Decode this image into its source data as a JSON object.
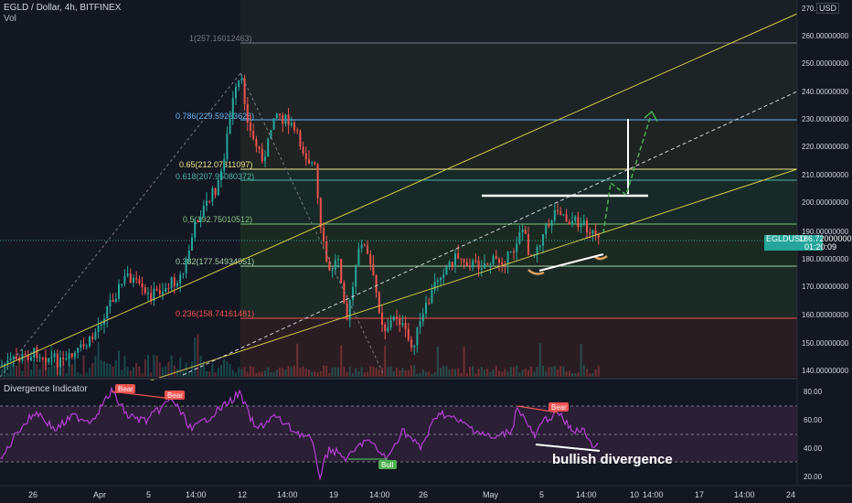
{
  "header": {
    "symbol_title": "EGLD / Dollar, 4h, BITFINEX",
    "volume_label": "Vol"
  },
  "currency_button": "USD",
  "price_axis": {
    "labels": [
      "270.00000000",
      "260.00000000",
      "250.00000000",
      "240.00000000",
      "230.00000000",
      "220.00000000",
      "210.00000000",
      "200.00000000",
      "190.00000000",
      "180.00000000",
      "170.00000000",
      "160.00000000",
      "150.00000000",
      "140.00000000"
    ],
    "top_clipped": "270.0"
  },
  "current_price": {
    "symbol": "EGLDUSD",
    "price": "186.72000000",
    "countdown": "01:20:09",
    "color": "#26a69a"
  },
  "fib_levels": [
    {
      "label": "1(257.16012463)",
      "color": "#787b86"
    },
    {
      "label": "0.786(229.59263628)",
      "color": "#64b5f6"
    },
    {
      "label": "0.65(212.07311097)",
      "color": "#f0e68c"
    },
    {
      "label": "0.618(207.95080372)",
      "color": "#4db6ac"
    },
    {
      "label": "0.5(192.75010512)",
      "color": "#81c784"
    },
    {
      "label": "0.382(177.54934051)",
      "color": "#a5d6a7"
    },
    {
      "label": "0.236(158.74161481)",
      "color": "#ef5350"
    }
  ],
  "indicator": {
    "title": "Divergence Indicator",
    "axis_labels": [
      "80.00",
      "60.00",
      "40.00",
      "20.00"
    ],
    "bear_label": "Bear",
    "bull_label": "Bull",
    "annotation": "bullish divergence"
  },
  "time_axis": {
    "labels": [
      "26",
      "Apr",
      "5",
      "14:00",
      "12",
      "14:00",
      "19",
      "14:00",
      "26",
      "May",
      "5",
      "14:00",
      "10",
      "14:00",
      "17",
      "14:00",
      "24"
    ]
  },
  "colors": {
    "up": "#26a69a",
    "down": "#ef5350",
    "channel": "#d4c94a",
    "rsi": "#b53fd4",
    "arrow": "#4caf50"
  }
}
